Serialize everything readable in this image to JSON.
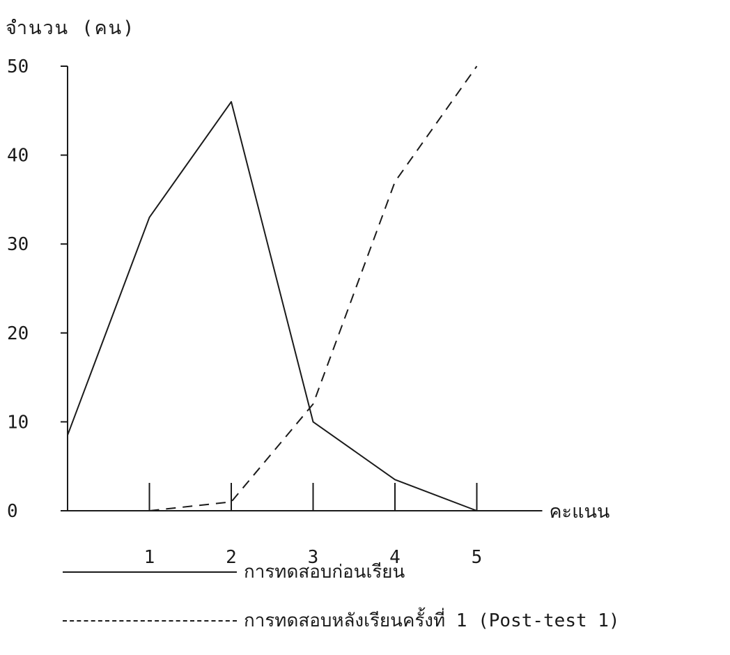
{
  "chart_data": {
    "type": "line",
    "title": "",
    "ylabel": "จำนวน (คน)",
    "xlabel": "คะแนน",
    "ylim": [
      0,
      50
    ],
    "xlim": [
      0,
      5.8
    ],
    "yticks": [
      "0",
      "10",
      "20",
      "30",
      "40",
      "50"
    ],
    "xticks": [
      "1",
      "2",
      "3",
      "4",
      "5"
    ],
    "grid": false,
    "series": [
      {
        "name": "การทดสอบก่อนเรียน",
        "style": "solid",
        "x": [
          0,
          1,
          2,
          3,
          4,
          5
        ],
        "values": [
          8.5,
          33,
          46,
          10,
          3.5,
          0
        ]
      },
      {
        "name": "การทดสอบหลังเรียนครั้งที่ 1 (Post-test 1)",
        "style": "dashed",
        "x": [
          1,
          2,
          3,
          4,
          5
        ],
        "values": [
          0,
          1,
          12,
          37,
          50
        ]
      }
    ]
  }
}
